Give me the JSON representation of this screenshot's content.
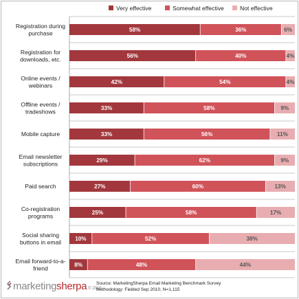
{
  "chart_data": {
    "type": "bar",
    "orientation": "horizontal",
    "stacked": true,
    "categories": [
      [
        "Registration during",
        "purchase"
      ],
      [
        "Registration for",
        "downloads, etc."
      ],
      [
        "Online events /",
        "webinars"
      ],
      [
        "Offline events /",
        "tradeshows"
      ],
      [
        "Mobile capture"
      ],
      [
        "Email newsletter",
        "subscriptions"
      ],
      [
        "Paid search"
      ],
      [
        "Co-registration",
        "programs"
      ],
      [
        "Social sharing",
        "buttons in email"
      ],
      [
        "Email forward-to-a-",
        "friend"
      ]
    ],
    "series": [
      {
        "name": "Very effective",
        "values": [
          58,
          56,
          42,
          33,
          33,
          29,
          27,
          25,
          10,
          8
        ]
      },
      {
        "name": "Somewhat effective",
        "values": [
          36,
          40,
          54,
          58,
          56,
          62,
          60,
          58,
          52,
          48
        ]
      },
      {
        "name": "Not effective",
        "values": [
          6,
          4,
          4,
          9,
          11,
          9,
          13,
          17,
          38,
          44
        ]
      }
    ],
    "value_suffix": "%",
    "legend_position": "top",
    "grid": true,
    "xlim": [
      0,
      100
    ]
  },
  "colors": {
    "very_effective": "#a2383d",
    "somewhat_effective": "#d0535a",
    "not_effective": "#e8adb0",
    "grid": "#c8c8c8",
    "brand_accent": "#b8272d"
  },
  "brand": {
    "icon": "marketingsherpa-logo-icon",
    "name_part1": "marketing",
    "name_part2": "sherpa",
    "copyright": "© 2010"
  },
  "source": {
    "line1": "Source: MarketingSherpa Email Marketing Benchmark Survey",
    "line2": "Methodology: Fielded Sep 2010, N=1,115"
  }
}
